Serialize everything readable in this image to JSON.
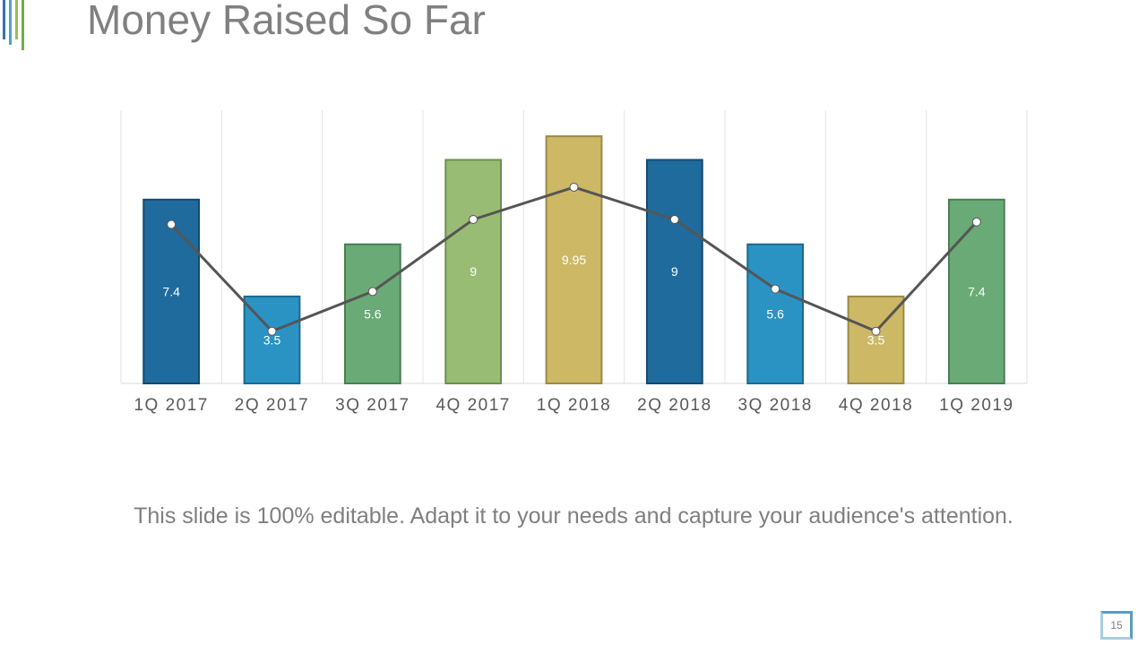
{
  "slide": {
    "title": "Money Raised So Far",
    "caption": "This slide is 100% editable. Adapt it to your needs and capture your audience's attention.",
    "page_number": "15",
    "accent_colors": [
      "#2e75b6",
      "#4aa3d0",
      "#9bbb59",
      "#70ad47"
    ]
  },
  "chart_data": {
    "type": "bar",
    "title": "",
    "xlabel": "",
    "ylabel": "",
    "ylim": [
      0,
      11
    ],
    "grid": "vertical",
    "categories": [
      "1Q 2017",
      "2Q 2017",
      "3Q 2017",
      "4Q 2017",
      "1Q 2018",
      "2Q 2018",
      "3Q 2018",
      "4Q 2018",
      "1Q 2019"
    ],
    "series": [
      {
        "type": "bar",
        "values": [
          7.4,
          3.5,
          5.6,
          9,
          9.95,
          9,
          5.6,
          3.5,
          7.4
        ],
        "colors": [
          "#1f6b9e",
          "#2a93c4",
          "#6aaa76",
          "#98bc74",
          "#cdb866",
          "#1f6b9e",
          "#2a93c4",
          "#cdb866",
          "#6aaa76"
        ],
        "borders": [
          "#154a6e",
          "#1c6a8f",
          "#4a7d55",
          "#6e8e50",
          "#9a8a48",
          "#154a6e",
          "#1c6a8f",
          "#9a8a48",
          "#4a7d55"
        ]
      },
      {
        "type": "line",
        "values": [
          6.4,
          2.1,
          3.7,
          6.6,
          7.9,
          6.6,
          3.8,
          2.1,
          6.5
        ],
        "color": "#555555"
      }
    ]
  }
}
